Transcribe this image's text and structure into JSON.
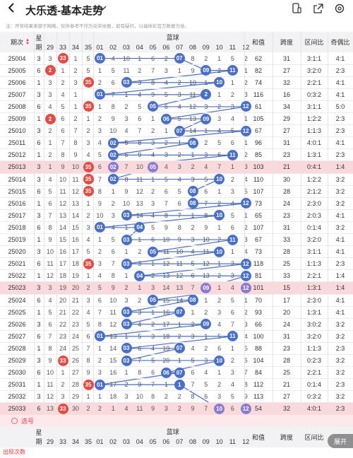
{
  "header": {
    "back_icon": "chevron-left-icon",
    "title": "大乐透-基本走势",
    "notice": "注：开奖结果来源于网络，仅供参考不作为兑奖依据，如有疑问，以福体彩官方数据为准。"
  },
  "table": {
    "col_issue": "期次",
    "col_xingqi_1": "星",
    "col_xingqi_2": "期",
    "col_lanqiu": "蓝球",
    "col_hezhi": "和值",
    "col_kuadu": "跨度",
    "col_qujianbi": "区间比",
    "col_jioubi": "奇偶比",
    "red_tail_headers": [
      "29",
      "33",
      "34",
      "35"
    ],
    "blue_headers": [
      "01",
      "02",
      "03",
      "04",
      "05",
      "06",
      "07",
      "08",
      "09",
      "10",
      "11",
      "12"
    ],
    "rows": [
      {
        "issue": "25004",
        "w": "3",
        "r": [
          "3",
          "33",
          "1",
          "5"
        ],
        "rh": [
          1
        ],
        "m": [
          "01",
          "4",
          "10",
          "1",
          "6",
          "2",
          "07",
          "8",
          "2",
          "1",
          "5",
          "2"
        ],
        "bb": [
          0,
          6
        ],
        "h": "62",
        "k": "31",
        "q": "3:1:1",
        "j": "4:1",
        "hl": false
      },
      {
        "issue": "25005",
        "w": "6",
        "r": [
          "2",
          "1",
          "2",
          "5"
        ],
        "rh": [
          0
        ],
        "m": [
          "1",
          "5",
          "11",
          "2",
          "7",
          "3",
          "1",
          "9",
          "09",
          "2",
          "11",
          "1"
        ],
        "bb": [
          8,
          10
        ],
        "h": "82",
        "k": "27",
        "q": "3:2:0",
        "j": "2:3",
        "hl": false
      },
      {
        "issue": "25006",
        "w": "1",
        "r": [
          "3",
          "2",
          "3",
          "35"
        ],
        "rh": [
          3
        ],
        "m": [
          "2",
          "6",
          "03",
          "3",
          "8",
          "4",
          "2",
          "10",
          "1",
          "10",
          "1",
          "2"
        ],
        "bb": [
          2,
          9
        ],
        "h": "74",
        "k": "32",
        "q": "2:2:1",
        "j": "4:1",
        "hl": false
      },
      {
        "issue": "25007",
        "w": "3",
        "r": [
          "3",
          "4",
          "1",
          ""
        ],
        "rh": [],
        "m": [
          "01",
          "7",
          "1",
          "4",
          "9",
          "5",
          "3",
          "11",
          "2",
          "1",
          "2",
          "3"
        ],
        "bb": [
          0,
          8
        ],
        "h": "116",
        "k": "16",
        "q": "0:3:2",
        "j": "4:1",
        "hl": false
      },
      {
        "issue": "25008",
        "w": "6",
        "r": [
          "4",
          "5",
          "1",
          "35"
        ],
        "rh": [
          3
        ],
        "m": [
          "1",
          "8",
          "2",
          "5",
          "05",
          "6",
          "4",
          "12",
          "3",
          "2",
          "3",
          "12"
        ],
        "bb": [
          4,
          11
        ],
        "h": "61",
        "k": "34",
        "q": "3:1:1",
        "j": "5:0",
        "hl": false
      },
      {
        "issue": "25009",
        "w": "1",
        "r": [
          "2",
          "6",
          "2",
          "1"
        ],
        "rh": [
          0
        ],
        "m": [
          "2",
          "9",
          "3",
          "6",
          "1",
          "06",
          "5",
          "13",
          "09",
          "3",
          "4",
          "1"
        ],
        "bb": [
          5,
          8
        ],
        "h": "105",
        "k": "29",
        "q": "1:2:2",
        "j": "2:3",
        "hl": false
      },
      {
        "issue": "25010",
        "w": "3",
        "r": [
          "2",
          "6",
          "7",
          "2"
        ],
        "rh": [],
        "m": [
          "3",
          "10",
          "4",
          "7",
          "2",
          "1",
          "07",
          "14",
          "1",
          "4",
          "5",
          "12"
        ],
        "bb": [
          6,
          11
        ],
        "h": "67",
        "k": "27",
        "q": "1:1:3",
        "j": "2:3",
        "hl": false
      },
      {
        "issue": "25011",
        "w": "6",
        "r": [
          "1",
          "7",
          "8",
          "3"
        ],
        "rh": [],
        "m": [
          "4",
          "02",
          "5",
          "8",
          "3",
          "2",
          "1",
          "08",
          "2",
          "5",
          "6",
          "1"
        ],
        "bb": [
          1,
          7
        ],
        "h": "96",
        "k": "31",
        "q": "4:0:1",
        "j": "4:1",
        "hl": false
      },
      {
        "issue": "25012",
        "w": "1",
        "r": [
          "2",
          "8",
          "9",
          "4"
        ],
        "rh": [],
        "m": [
          "5",
          "02",
          "6",
          "9",
          "4",
          "3",
          "2",
          "1",
          "3",
          "6",
          "11",
          "2"
        ],
        "bb": [
          1,
          10
        ],
        "h": "85",
        "k": "23",
        "q": "1:3:1",
        "j": "2:3",
        "hl": false
      },
      {
        "issue": "25013",
        "w": "3",
        "r": [
          "1",
          "9",
          "10",
          "35"
        ],
        "rh": [
          3
        ],
        "m": [
          "6",
          "02",
          "7",
          "10",
          "05",
          "4",
          "3",
          "2",
          "4",
          "7",
          "1",
          "3"
        ],
        "bb": [
          1,
          4
        ],
        "h": "103",
        "k": "21",
        "q": "0:4:1",
        "j": "1:4",
        "hl": true
      },
      {
        "issue": "25014",
        "w": "3",
        "r": [
          "4",
          "10",
          "11",
          "35"
        ],
        "rh": [
          3
        ],
        "m": [
          "7",
          "02",
          "8",
          "11",
          "1",
          "5",
          "4",
          "3",
          "5",
          "10",
          "2",
          "4"
        ],
        "bb": [
          1,
          9
        ],
        "h": "110",
        "k": "30",
        "q": "1:2:2",
        "j": "3:2",
        "hl": false
      },
      {
        "issue": "25015",
        "w": "6",
        "r": [
          "5",
          "11",
          "12",
          "35"
        ],
        "rh": [
          3
        ],
        "m": [
          "8",
          "1",
          "9",
          "12",
          "2",
          "6",
          "5",
          "08",
          "6",
          "1",
          "3",
          "5"
        ],
        "bb": [
          7
        ],
        "h": "107",
        "k": "28",
        "q": "2:1:2",
        "j": "3:2",
        "hl": false
      },
      {
        "issue": "25016",
        "w": "1",
        "r": [
          "6",
          "12",
          "13",
          "1"
        ],
        "rh": [],
        "m": [
          "9",
          "2",
          "10",
          "13",
          "3",
          "7",
          "6",
          "08",
          "7",
          "2",
          "4",
          "12"
        ],
        "bb": [
          7,
          11
        ],
        "h": "73",
        "k": "24",
        "q": "2:3:0",
        "j": "3:2",
        "hl": false
      },
      {
        "issue": "25017",
        "w": "3",
        "r": [
          "7",
          "13",
          "14",
          "2"
        ],
        "rh": [],
        "m": [
          "10",
          "3",
          "03",
          "14",
          "4",
          "8",
          "7",
          "1",
          "8",
          "10",
          "5",
          "1"
        ],
        "bb": [
          2,
          9
        ],
        "h": "65",
        "k": "23",
        "q": "2:0:3",
        "j": "4:1",
        "hl": false
      },
      {
        "issue": "25018",
        "w": "6",
        "r": [
          "8",
          "14",
          "15",
          "3"
        ],
        "rh": [],
        "m": [
          "01",
          "4",
          "1",
          "04",
          "5",
          "9",
          "8",
          "2",
          "9",
          "1",
          "6",
          "2"
        ],
        "bb": [
          0,
          3
        ],
        "h": "107",
        "k": "31",
        "q": "0:1:4",
        "j": "3:2",
        "hl": false
      },
      {
        "issue": "25019",
        "w": "1",
        "r": [
          "9",
          "15",
          "16",
          "4"
        ],
        "rh": [],
        "m": [
          "1",
          "5",
          "03",
          "1",
          "6",
          "10",
          "9",
          "3",
          "10",
          "2",
          "11",
          "3"
        ],
        "bb": [
          2,
          10
        ],
        "h": "67",
        "k": "33",
        "q": "3:2:0",
        "j": "4:1",
        "hl": false
      },
      {
        "issue": "25020",
        "w": "3",
        "r": [
          "10",
          "16",
          "17",
          "5"
        ],
        "rh": [],
        "m": [
          "2",
          "6",
          "1",
          "2",
          "05",
          "11",
          "10",
          "4",
          "11",
          "10",
          "1",
          "4"
        ],
        "bb": [
          4,
          9
        ],
        "h": "73",
        "k": "28",
        "q": "3:1:1",
        "j": "4:1",
        "hl": false
      },
      {
        "issue": "25021",
        "w": "6",
        "r": [
          "11",
          "17",
          "18",
          "35"
        ],
        "rh": [
          3
        ],
        "m": [
          "3",
          "7",
          "03",
          "3",
          "1",
          "12",
          "11",
          "5",
          "12",
          "1",
          "2",
          "12"
        ],
        "bb": [
          2,
          11
        ],
        "h": "118",
        "k": "25",
        "q": "1:1:3",
        "j": "2:3",
        "hl": false
      },
      {
        "issue": "25022",
        "w": "1",
        "r": [
          "12",
          "18",
          "19",
          "1"
        ],
        "rh": [],
        "m": [
          "4",
          "8",
          "1",
          "04",
          "2",
          "13",
          "12",
          "6",
          "13",
          "2",
          "3",
          "12"
        ],
        "bb": [
          3,
          11
        ],
        "h": "81",
        "k": "33",
        "q": "2:2:1",
        "j": "1:4",
        "hl": false
      },
      {
        "issue": "25023",
        "w": "3",
        "r": [
          "3",
          "19",
          "20",
          "2"
        ],
        "rh": [],
        "m": [
          "5",
          "9",
          "2",
          "1",
          "3",
          "14",
          "13",
          "7",
          "09",
          "1",
          "4",
          "12"
        ],
        "bb": [
          8,
          11
        ],
        "h": "101",
        "k": "15",
        "q": "1:3:1",
        "j": "1:4",
        "hl": true
      },
      {
        "issue": "25024",
        "w": "6",
        "r": [
          "4",
          "20",
          "21",
          "3"
        ],
        "rh": [],
        "m": [
          "6",
          "10",
          "3",
          "2",
          "05",
          "15",
          "14",
          "08",
          "1",
          "2",
          "5",
          "1"
        ],
        "bb": [
          4,
          7
        ],
        "h": "70",
        "k": "17",
        "q": "2:3:0",
        "j": "4:1",
        "hl": false
      },
      {
        "issue": "25025",
        "w": "1",
        "r": [
          "5",
          "21",
          "22",
          "4"
        ],
        "rh": [],
        "m": [
          "7",
          "11",
          "03",
          "3",
          "1",
          "16",
          "07",
          "1",
          "2",
          "3",
          "6",
          "2"
        ],
        "bb": [
          2,
          6
        ],
        "h": "93",
        "k": "20",
        "q": "1:3:1",
        "j": "4:1",
        "hl": false
      },
      {
        "issue": "25026",
        "w": "3",
        "r": [
          "6",
          "22",
          "23",
          "5"
        ],
        "rh": [],
        "m": [
          "8",
          "12",
          "03",
          "4",
          "2",
          "17",
          "1",
          "2",
          "09",
          "4",
          "7",
          "3"
        ],
        "bb": [
          2,
          8
        ],
        "h": "66",
        "k": "24",
        "q": "3:0:2",
        "j": "3:2",
        "hl": false
      },
      {
        "issue": "25027",
        "w": "6",
        "r": [
          "7",
          "23",
          "24",
          "6"
        ],
        "rh": [],
        "m": [
          "01",
          "13",
          "1",
          "5",
          "3",
          "18",
          "2",
          "3",
          "1",
          "5",
          "11",
          "4"
        ],
        "bb": [
          0,
          10
        ],
        "h": "100",
        "k": "31",
        "q": "3:2:0",
        "j": "3:2",
        "hl": false
      },
      {
        "issue": "25028",
        "w": "1",
        "r": [
          "8",
          "24",
          "25",
          "7"
        ],
        "rh": [],
        "m": [
          "1",
          "14",
          "03",
          "6",
          "4",
          "19",
          "07",
          "4",
          "2",
          "6",
          "1",
          "5"
        ],
        "bb": [
          2,
          6
        ],
        "h": "88",
        "k": "23",
        "q": "1:1:3",
        "j": "2:3",
        "hl": false
      },
      {
        "issue": "25029",
        "w": "3",
        "r": [
          "9",
          "33",
          "26",
          "8"
        ],
        "rh": [
          1
        ],
        "m": [
          "2",
          "15",
          "03",
          "7",
          "5",
          "20",
          "1",
          "5",
          "3",
          "10",
          "2",
          "6"
        ],
        "bb": [
          2,
          9
        ],
        "h": "104",
        "k": "28",
        "q": "0:2:3",
        "j": "3:2",
        "hl": false
      },
      {
        "issue": "25030",
        "w": "6",
        "r": [
          "10",
          "1",
          "27",
          "9"
        ],
        "rh": [],
        "m": [
          "3",
          "16",
          "1",
          "8",
          "6",
          "06",
          "07",
          "6",
          "4",
          "1",
          "3",
          "7"
        ],
        "bb": [
          5,
          6
        ],
        "h": "84",
        "k": "25",
        "q": "2:2:1",
        "j": "3:2",
        "hl": false
      },
      {
        "issue": "25031",
        "w": "1",
        "r": [
          "11",
          "2",
          "28",
          "35"
        ],
        "rh": [
          3
        ],
        "m": [
          "01",
          "17",
          "2",
          "9",
          "7",
          "1",
          "1",
          "7",
          "5",
          "2",
          "4",
          "8"
        ],
        "bb": [
          0,
          6
        ],
        "h": "112",
        "k": "21",
        "q": "0:1:4",
        "j": "2:3",
        "hl": false
      },
      {
        "issue": "25032",
        "w": "3",
        "r": [
          "12",
          "3",
          "29",
          "1"
        ],
        "rh": [],
        "m": [
          "1",
          "18",
          "3",
          "10",
          "8",
          "2",
          "2",
          "8",
          "6",
          "3",
          "5",
          "9"
        ],
        "bb": [],
        "h": "113",
        "k": "27",
        "q": "0:3:2",
        "j": "3:2",
        "hl": false
      },
      {
        "issue": "25033",
        "w": "6",
        "r": [
          "13",
          "33",
          "30",
          "2"
        ],
        "rh": [
          1
        ],
        "m": [
          "2",
          "1",
          "4",
          "11",
          "9",
          "3",
          "2",
          "9",
          "7",
          "10",
          "6",
          "12"
        ],
        "bb": [
          9,
          11
        ],
        "h": "54",
        "k": "32",
        "q": "4:0:1",
        "j": "2:3",
        "hl": true
      }
    ]
  },
  "select": {
    "label": "选号"
  },
  "float_button": "展开",
  "bottom_text": "出现次数"
}
